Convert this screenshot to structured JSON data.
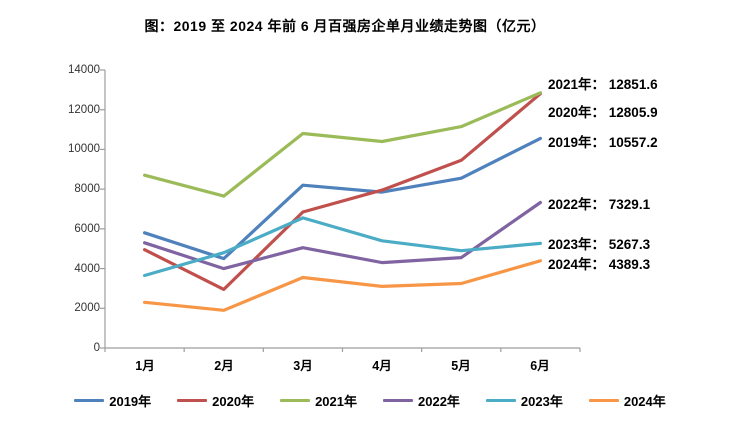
{
  "title": "图：2019 至 2024 年前 6 月百强房企单月业绩走势图（亿元）",
  "chart_data": {
    "type": "line",
    "categories": [
      "1月",
      "2月",
      "3月",
      "4月",
      "5月",
      "6月"
    ],
    "series": [
      {
        "name": "2019年",
        "color": "#4F81BD",
        "values": [
          5800,
          4500,
          8200,
          7850,
          8550,
          10557.2
        ]
      },
      {
        "name": "2020年",
        "color": "#C0504D",
        "values": [
          4950,
          2950,
          6850,
          7950,
          9450,
          12805.9
        ]
      },
      {
        "name": "2021年",
        "color": "#9BBB59",
        "values": [
          8700,
          7650,
          10800,
          10400,
          11150,
          12851.6
        ]
      },
      {
        "name": "2022年",
        "color": "#8064A2",
        "values": [
          5300,
          4000,
          5050,
          4300,
          4550,
          7329.1
        ]
      },
      {
        "name": "2023年",
        "color": "#4BACC6",
        "values": [
          3650,
          4800,
          6550,
          5400,
          4900,
          5267.3
        ]
      },
      {
        "name": "2024年",
        "color": "#F79646",
        "values": [
          2300,
          1900,
          3550,
          3100,
          3250,
          4389.3
        ]
      }
    ],
    "ylim": [
      0,
      14000
    ],
    "y_ticks": [
      "0",
      "2000",
      "4000",
      "6000",
      "8000",
      "10000",
      "12000",
      "14000"
    ],
    "grid": false,
    "legend_position": "bottom",
    "axis_color": "#9e9e9e"
  },
  "annotations": [
    {
      "text": "2021年： 12851.6"
    },
    {
      "text": "2020年： 12805.9"
    },
    {
      "text": "2019年： 10557.2"
    },
    {
      "text": "2022年： 7329.1"
    },
    {
      "text": "2023年： 5267.3"
    },
    {
      "text": "2024年： 4389.3"
    }
  ]
}
